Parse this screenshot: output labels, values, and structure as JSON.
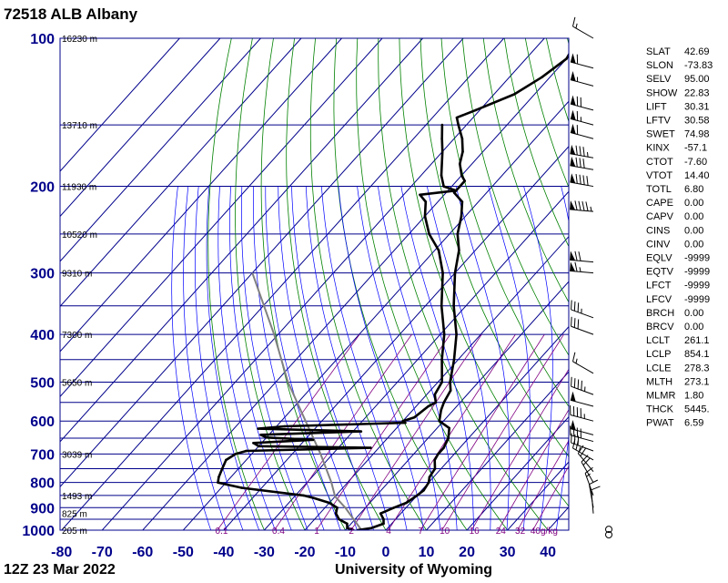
{
  "title": "72518 ALB Albany",
  "footer_left": "12Z 23 Mar 2022",
  "footer_right": "University of Wyoming",
  "colors": {
    "grid": "#00008b",
    "dry_adiabat": "#008000",
    "moist_adiabat": "#0000ff",
    "mixing_ratio": "#800080",
    "parcel": "#808080",
    "sounding": "#000000"
  },
  "chart_data": {
    "type": "skew-t",
    "x_axis_label": "",
    "y_axis_label": "",
    "pressure_ticks": [
      "100",
      "200",
      "300",
      "400",
      "500",
      "600",
      "700",
      "800",
      "900",
      "1000"
    ],
    "temperature_ticks": [
      "-80",
      "-70",
      "-60",
      "-50",
      "-40",
      "-30",
      "-20",
      "-10",
      "0",
      "10",
      "20",
      "30",
      "40"
    ],
    "height_labels": [
      {
        "p": 100,
        "label": "16230 m"
      },
      {
        "p": 150,
        "label": "13710 m"
      },
      {
        "p": 200,
        "label": "11930 m"
      },
      {
        "p": 250,
        "label": "10520 m"
      },
      {
        "p": 300,
        "label": "9310 m"
      },
      {
        "p": 400,
        "label": "7300 m"
      },
      {
        "p": 500,
        "label": "5650 m"
      },
      {
        "p": 700,
        "label": "3039 m"
      },
      {
        "p": 850,
        "label": "1493 m"
      },
      {
        "p": 925,
        "label": "825 m"
      },
      {
        "p": 1000,
        "label": "205 m"
      }
    ],
    "mixing_ratio_labels": [
      "0.1",
      "0.4",
      "1",
      "2",
      "4",
      "7",
      "10",
      "16",
      "24",
      "32",
      "40g/kg"
    ],
    "temperature": [
      {
        "p": 1000,
        "t": -7
      },
      {
        "p": 990,
        "t": -4
      },
      {
        "p": 970,
        "t": -2
      },
      {
        "p": 950,
        "t": -3
      },
      {
        "p": 925,
        "t": -5
      },
      {
        "p": 900,
        "t": -3
      },
      {
        "p": 880,
        "t": -1
      },
      {
        "p": 850,
        "t": 0
      },
      {
        "p": 830,
        "t": 0.5
      },
      {
        "p": 800,
        "t": 0
      },
      {
        "p": 780,
        "t": -1
      },
      {
        "p": 750,
        "t": -1.5
      },
      {
        "p": 720,
        "t": -3.5
      },
      {
        "p": 700,
        "t": -4
      },
      {
        "p": 680,
        "t": -4
      },
      {
        "p": 650,
        "t": -5
      },
      {
        "p": 620,
        "t": -7
      },
      {
        "p": 600,
        "t": -11
      },
      {
        "p": 570,
        "t": -13
      },
      {
        "p": 550,
        "t": -14
      },
      {
        "p": 520,
        "t": -15
      },
      {
        "p": 500,
        "t": -17
      },
      {
        "p": 450,
        "t": -21
      },
      {
        "p": 400,
        "t": -26
      },
      {
        "p": 350,
        "t": -33
      },
      {
        "p": 300,
        "t": -40
      },
      {
        "p": 270,
        "t": -44
      },
      {
        "p": 250,
        "t": -48
      },
      {
        "p": 230,
        "t": -51
      },
      {
        "p": 215,
        "t": -54
      },
      {
        "p": 206,
        "t": -58
      },
      {
        "p": 200,
        "t": -58
      },
      {
        "p": 195,
        "t": -58
      },
      {
        "p": 190,
        "t": -60
      },
      {
        "p": 180,
        "t": -63
      },
      {
        "p": 170,
        "t": -65
      },
      {
        "p": 160,
        "t": -68
      },
      {
        "p": 150,
        "t": -72
      },
      {
        "p": 145,
        "t": -74
      },
      {
        "p": 140,
        "t": -71
      },
      {
        "p": 130,
        "t": -65
      },
      {
        "p": 120,
        "t": -62
      },
      {
        "p": 110,
        "t": -60
      },
      {
        "p": 104,
        "t": -61
      },
      {
        "p": 100,
        "t": -60
      }
    ],
    "dewpoint": [
      {
        "p": 1000,
        "t": -8
      },
      {
        "p": 990,
        "t": -10
      },
      {
        "p": 970,
        "t": -11
      },
      {
        "p": 950,
        "t": -14
      },
      {
        "p": 925,
        "t": -16
      },
      {
        "p": 900,
        "t": -17
      },
      {
        "p": 880,
        "t": -20
      },
      {
        "p": 860,
        "t": -25
      },
      {
        "p": 850,
        "t": -28
      },
      {
        "p": 820,
        "t": -45
      },
      {
        "p": 800,
        "t": -52
      },
      {
        "p": 780,
        "t": -53
      },
      {
        "p": 750,
        "t": -54
      },
      {
        "p": 720,
        "t": -55
      },
      {
        "p": 700,
        "t": -54
      },
      {
        "p": 690,
        "t": -52
      },
      {
        "p": 680,
        "t": -22
      },
      {
        "p": 675,
        "t": -50
      },
      {
        "p": 665,
        "t": -52
      },
      {
        "p": 655,
        "t": -38
      },
      {
        "p": 648,
        "t": -50
      },
      {
        "p": 640,
        "t": -52
      },
      {
        "p": 630,
        "t": -28
      },
      {
        "p": 622,
        "t": -54
      },
      {
        "p": 615,
        "t": -48
      },
      {
        "p": 605,
        "t": -19
      },
      {
        "p": 600,
        "t": -20
      },
      {
        "p": 590,
        "t": -18
      },
      {
        "p": 560,
        "t": -17
      },
      {
        "p": 550,
        "t": -16
      },
      {
        "p": 530,
        "t": -18
      },
      {
        "p": 500,
        "t": -19
      },
      {
        "p": 450,
        "t": -24
      },
      {
        "p": 400,
        "t": -29
      },
      {
        "p": 350,
        "t": -36
      },
      {
        "p": 300,
        "t": -43
      },
      {
        "p": 270,
        "t": -49
      },
      {
        "p": 250,
        "t": -55
      },
      {
        "p": 230,
        "t": -60
      },
      {
        "p": 215,
        "t": -63
      },
      {
        "p": 208,
        "t": -66
      },
      {
        "p": 204,
        "t": -58
      },
      {
        "p": 200,
        "t": -62
      },
      {
        "p": 190,
        "t": -65
      },
      {
        "p": 170,
        "t": -70
      },
      {
        "p": 160,
        "t": -73
      },
      {
        "p": 150,
        "t": -76
      }
    ],
    "parcel": [
      {
        "p": 1000,
        "t": -6
      },
      {
        "p": 900,
        "t": -15
      },
      {
        "p": 854,
        "t": -20
      },
      {
        "p": 800,
        "t": -24
      },
      {
        "p": 700,
        "t": -33
      },
      {
        "p": 600,
        "t": -44
      },
      {
        "p": 500,
        "t": -57
      },
      {
        "p": 400,
        "t": -71
      },
      {
        "p": 300,
        "t": -90
      }
    ],
    "wind_barbs": [
      {
        "p": 100,
        "dir": 300,
        "spd": 15
      },
      {
        "p": 115,
        "dir": 285,
        "spd": 60
      },
      {
        "p": 125,
        "dir": 285,
        "spd": 55
      },
      {
        "p": 140,
        "dir": 285,
        "spd": 70
      },
      {
        "p": 150,
        "dir": 285,
        "spd": 65
      },
      {
        "p": 160,
        "dir": 285,
        "spd": 60
      },
      {
        "p": 175,
        "dir": 280,
        "spd": 85
      },
      {
        "p": 185,
        "dir": 280,
        "spd": 80
      },
      {
        "p": 200,
        "dir": 280,
        "spd": 90
      },
      {
        "p": 225,
        "dir": 275,
        "spd": 95
      },
      {
        "p": 285,
        "dir": 275,
        "spd": 70
      },
      {
        "p": 300,
        "dir": 275,
        "spd": 65
      },
      {
        "p": 370,
        "dir": 290,
        "spd": 35
      },
      {
        "p": 400,
        "dir": 290,
        "spd": 30
      },
      {
        "p": 480,
        "dir": 300,
        "spd": 15
      },
      {
        "p": 530,
        "dir": 290,
        "spd": 45
      },
      {
        "p": 560,
        "dir": 285,
        "spd": 50
      },
      {
        "p": 600,
        "dir": 285,
        "spd": 45
      },
      {
        "p": 640,
        "dir": 285,
        "spd": 50
      },
      {
        "p": 660,
        "dir": 285,
        "spd": 40
      },
      {
        "p": 690,
        "dir": 290,
        "spd": 30
      },
      {
        "p": 720,
        "dir": 300,
        "spd": 25
      },
      {
        "p": 760,
        "dir": 320,
        "spd": 20
      },
      {
        "p": 800,
        "dir": 330,
        "spd": 20
      },
      {
        "p": 850,
        "dir": 340,
        "spd": 15
      },
      {
        "p": 900,
        "dir": 350,
        "spd": 10
      },
      {
        "p": 925,
        "dir": 355,
        "spd": 10
      },
      {
        "p": 975,
        "dir": 0,
        "spd": 0
      },
      {
        "p": 1000,
        "dir": 0,
        "spd": 0
      }
    ]
  },
  "indices": [
    {
      "name": "SLAT",
      "value": "42.69"
    },
    {
      "name": "SLON",
      "value": "-73.83"
    },
    {
      "name": "SELV",
      "value": "95.00"
    },
    {
      "name": "SHOW",
      "value": "22.83"
    },
    {
      "name": "LIFT",
      "value": "30.31"
    },
    {
      "name": "LFTV",
      "value": "30.58"
    },
    {
      "name": "SWET",
      "value": "74.98"
    },
    {
      "name": "KINX",
      "value": "-57.1"
    },
    {
      "name": "CTOT",
      "value": "-7.60"
    },
    {
      "name": "VTOT",
      "value": "14.40"
    },
    {
      "name": "TOTL",
      "value": "6.80"
    },
    {
      "name": "CAPE",
      "value": "0.00"
    },
    {
      "name": "CAPV",
      "value": "0.00"
    },
    {
      "name": "CINS",
      "value": "0.00"
    },
    {
      "name": "CINV",
      "value": "0.00"
    },
    {
      "name": "EQLV",
      "value": "-9999"
    },
    {
      "name": "EQTV",
      "value": "-9999"
    },
    {
      "name": "LFCT",
      "value": "-9999"
    },
    {
      "name": "LFCV",
      "value": "-9999"
    },
    {
      "name": "BRCH",
      "value": "0.00"
    },
    {
      "name": "BRCV",
      "value": "0.00"
    },
    {
      "name": "LCLT",
      "value": "261.1"
    },
    {
      "name": "LCLP",
      "value": "854.1"
    },
    {
      "name": "LCLE",
      "value": "278.3"
    },
    {
      "name": "MLTH",
      "value": "273.1"
    },
    {
      "name": "MLMR",
      "value": "1.80"
    },
    {
      "name": "THCK",
      "value": "5445."
    },
    {
      "name": "PWAT",
      "value": "6.59"
    }
  ]
}
